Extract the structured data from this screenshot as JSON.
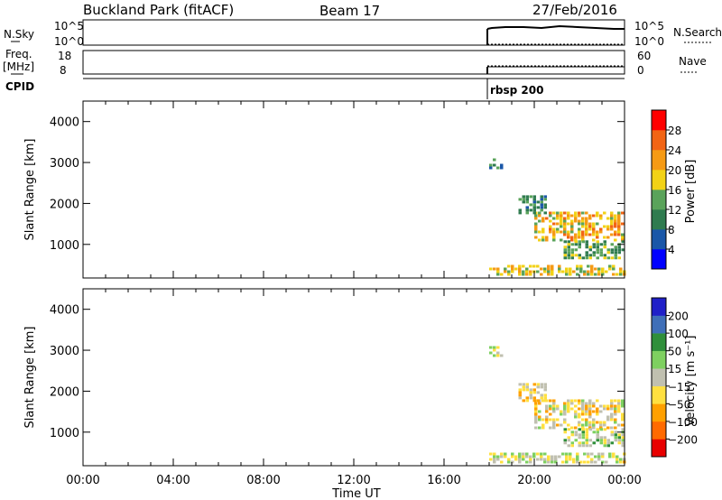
{
  "header": {
    "title": "Buckland Park (fitACF)",
    "beam": "Beam 17",
    "date": "27/Feb/2016"
  },
  "strips": {
    "nsky_label": "N.Sky",
    "nsky_top": "10^5",
    "nsky_bottom": "10^0",
    "nsearch_top": "10^5",
    "nsearch_bottom": "10^0",
    "nsearch_label": "N.Search",
    "freq_label_1": "Freq.",
    "freq_label_2": "[MHz]",
    "freq_top": "18",
    "freq_bottom": "8",
    "nave_top": "60",
    "nave_bottom": "0",
    "nave_label": "Nave",
    "cpid_label": "CPID",
    "cpid_value": "rbsp 200"
  },
  "colors": {
    "power": [
      "#0000ff",
      "#1a57a8",
      "#2f7b4f",
      "#5aa35a",
      "#f2d216",
      "#f59a14",
      "#f26414",
      "#ff0000"
    ],
    "velocity": [
      "#e80000",
      "#ff6a00",
      "#ffa000",
      "#ffe040",
      "#c0c0b0",
      "#7ed060",
      "#2f8f3a",
      "#3f6fb8",
      "#2020c8"
    ]
  },
  "chart_data": [
    {
      "type": "heatmap",
      "quantity": "power",
      "ylabel": "Slant Range [km]",
      "xlabel": "Time UT",
      "x_ticks": [
        "00:00",
        "04:00",
        "08:00",
        "12:00",
        "16:00",
        "20:00",
        "00:00"
      ],
      "y_ticks": [
        1000,
        2000,
        3000,
        4000
      ],
      "ylim": [
        180,
        4500
      ],
      "x_range_hours": [
        0,
        24
      ],
      "colorbar_label": "Power [dB]",
      "colorbar_ticks": [
        "4",
        "8",
        "12",
        "16",
        "20",
        "24",
        "28"
      ],
      "colorbar_range": [
        0,
        32
      ],
      "echo_regions": [
        {
          "t_start": 18.0,
          "t_end": 24.0,
          "range_km": [
            250,
            500
          ],
          "value": 18
        },
        {
          "t_start": 18.0,
          "t_end": 18.6,
          "range_km": [
            2850,
            3100
          ],
          "value": 10
        },
        {
          "t_start": 20.0,
          "t_end": 24.0,
          "range_km": [
            1100,
            1800
          ],
          "value": 20
        },
        {
          "t_start": 21.3,
          "t_end": 24.0,
          "range_km": [
            700,
            1100
          ],
          "value": 14
        },
        {
          "t_start": 19.3,
          "t_end": 20.5,
          "range_km": [
            1800,
            2200
          ],
          "value": 10
        }
      ]
    },
    {
      "type": "heatmap",
      "quantity": "velocity",
      "ylabel": "Slant Range [km]",
      "xlabel": "Time UT",
      "x_ticks": [
        "00:00",
        "04:00",
        "08:00",
        "12:00",
        "16:00",
        "20:00",
        "00:00"
      ],
      "y_ticks": [
        1000,
        2000,
        3000,
        4000
      ],
      "ylim": [
        180,
        4500
      ],
      "x_range_hours": [
        0,
        24
      ],
      "colorbar_label": "Velocity [m s⁻¹]",
      "colorbar_ticks": [
        "200",
        "100",
        "50",
        "15",
        "−15",
        "−50",
        "−100",
        "−200"
      ],
      "colorbar_range": [
        -250,
        250
      ],
      "echo_regions": [
        {
          "t_start": 18.0,
          "t_end": 24.0,
          "range_km": [
            250,
            500
          ],
          "value": 0
        },
        {
          "t_start": 18.0,
          "t_end": 18.6,
          "range_km": [
            2850,
            3100
          ],
          "value": 10
        },
        {
          "t_start": 20.0,
          "t_end": 24.0,
          "range_km": [
            1100,
            1800
          ],
          "value": -40
        },
        {
          "t_start": 21.3,
          "t_end": 24.0,
          "range_km": [
            700,
            1100
          ],
          "value": 20
        },
        {
          "t_start": 19.3,
          "t_end": 20.5,
          "range_km": [
            1800,
            2200
          ],
          "value": -60
        }
      ]
    }
  ]
}
